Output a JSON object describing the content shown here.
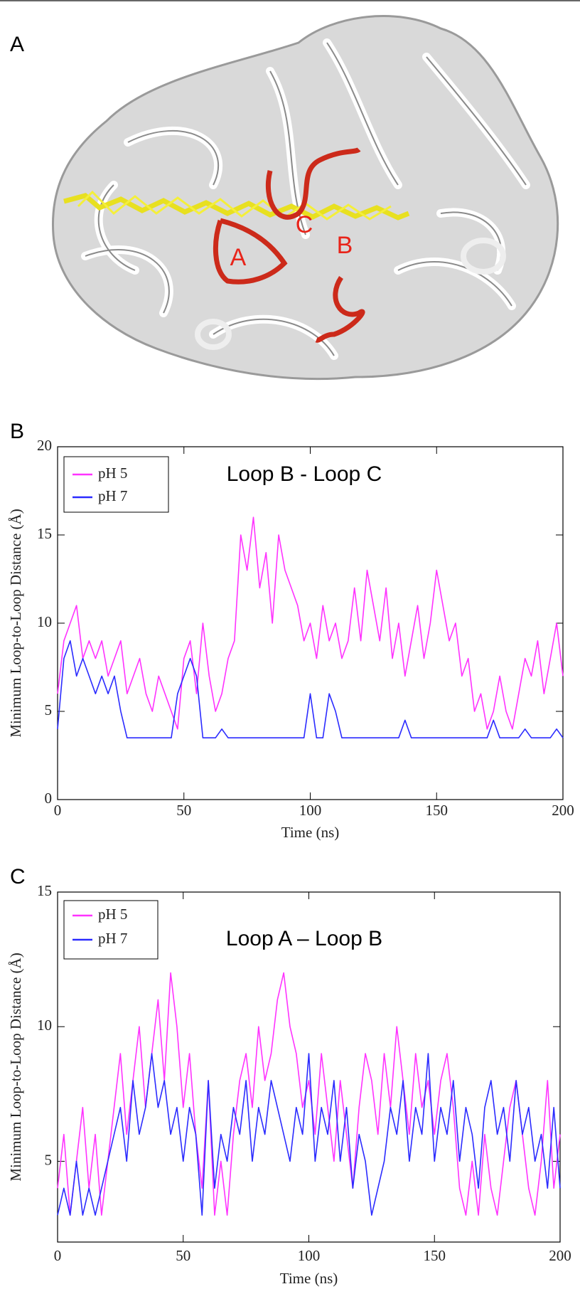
{
  "image_panel": {
    "panel_label": "A",
    "loop_labels": [
      "A",
      "C",
      "B"
    ]
  },
  "chart_data": [
    {
      "type": "line",
      "panel_label": "B",
      "annotation": "Loop B - Loop C",
      "xlabel": "Time (ns)",
      "ylabel": "Minimum Loop-to-Loop Distance (Å)",
      "xlim": [
        0,
        200
      ],
      "ylim": [
        0,
        20
      ],
      "xticks": [
        0,
        50,
        100,
        150,
        200
      ],
      "yticks": [
        0,
        5,
        10,
        15,
        20
      ],
      "legend": "upper-left",
      "x": [
        0,
        2.5,
        5,
        7.5,
        10,
        12.5,
        15,
        17.5,
        20,
        22.5,
        25,
        27.5,
        30,
        32.5,
        35,
        37.5,
        40,
        42.5,
        45,
        47.5,
        50,
        52.5,
        55,
        57.5,
        60,
        62.5,
        65,
        67.5,
        70,
        72.5,
        75,
        77.5,
        80,
        82.5,
        85,
        87.5,
        90,
        92.5,
        95,
        97.5,
        100,
        102.5,
        105,
        107.5,
        110,
        112.5,
        115,
        117.5,
        120,
        122.5,
        125,
        127.5,
        130,
        132.5,
        135,
        137.5,
        140,
        142.5,
        145,
        147.5,
        150,
        152.5,
        155,
        157.5,
        160,
        162.5,
        165,
        167.5,
        170,
        172.5,
        175,
        177.5,
        180,
        182.5,
        185,
        187.5,
        190,
        192.5,
        195,
        197.5,
        200
      ],
      "series": [
        {
          "name": "pH 5",
          "color": "#ff33ff",
          "values": [
            6,
            9,
            10,
            11,
            8,
            9,
            8,
            9,
            7,
            8,
            9,
            6,
            7,
            8,
            6,
            5,
            7,
            6,
            5,
            4,
            8,
            9,
            6,
            10,
            7,
            5,
            6,
            8,
            9,
            15,
            13,
            16,
            12,
            14,
            10,
            15,
            13,
            12,
            11,
            9,
            10,
            8,
            11,
            9,
            10,
            8,
            9,
            12,
            9,
            13,
            11,
            9,
            12,
            8,
            10,
            7,
            9,
            11,
            8,
            10,
            13,
            11,
            9,
            10,
            7,
            8,
            5,
            6,
            4,
            5,
            7,
            5,
            4,
            6,
            8,
            7,
            9,
            6,
            8,
            10,
            7
          ]
        },
        {
          "name": "pH 7",
          "color": "#2b2bff",
          "values": [
            4,
            8,
            9,
            7,
            8,
            7,
            6,
            7,
            6,
            7,
            5,
            3.5,
            3.5,
            3.5,
            3.5,
            3.5,
            3.5,
            3.5,
            3.5,
            6,
            7,
            8,
            7,
            3.5,
            3.5,
            3.5,
            4,
            3.5,
            3.5,
            3.5,
            3.5,
            3.5,
            3.5,
            3.5,
            3.5,
            3.5,
            3.5,
            3.5,
            3.5,
            3.5,
            6,
            3.5,
            3.5,
            6,
            5,
            3.5,
            3.5,
            3.5,
            3.5,
            3.5,
            3.5,
            3.5,
            3.5,
            3.5,
            3.5,
            4.5,
            3.5,
            3.5,
            3.5,
            3.5,
            3.5,
            3.5,
            3.5,
            3.5,
            3.5,
            3.5,
            3.5,
            3.5,
            3.5,
            4.5,
            3.5,
            3.5,
            3.5,
            3.5,
            4,
            3.5,
            3.5,
            3.5,
            3.5,
            4,
            3.5
          ]
        }
      ]
    },
    {
      "type": "line",
      "panel_label": "C",
      "annotation": "Loop A – Loop B",
      "xlabel": "Time (ns)",
      "ylabel": "Minimum Loop-to-Loop Distance (Å)",
      "xlim": [
        0,
        200
      ],
      "ylim": [
        2,
        15
      ],
      "xticks": [
        0,
        50,
        100,
        150,
        200
      ],
      "yticks": [
        5,
        10,
        15
      ],
      "legend": "upper-left",
      "x": [
        0,
        2.5,
        5,
        7.5,
        10,
        12.5,
        15,
        17.5,
        20,
        22.5,
        25,
        27.5,
        30,
        32.5,
        35,
        37.5,
        40,
        42.5,
        45,
        47.5,
        50,
        52.5,
        55,
        57.5,
        60,
        62.5,
        65,
        67.5,
        70,
        72.5,
        75,
        77.5,
        80,
        82.5,
        85,
        87.5,
        90,
        92.5,
        95,
        97.5,
        100,
        102.5,
        105,
        107.5,
        110,
        112.5,
        115,
        117.5,
        120,
        122.5,
        125,
        127.5,
        130,
        132.5,
        135,
        137.5,
        140,
        142.5,
        145,
        147.5,
        150,
        152.5,
        155,
        157.5,
        160,
        162.5,
        165,
        167.5,
        170,
        172.5,
        175,
        177.5,
        180,
        182.5,
        185,
        187.5,
        190,
        192.5,
        195,
        197.5,
        200
      ],
      "series": [
        {
          "name": "pH 5",
          "color": "#ff33ff",
          "values": [
            4,
            6,
            3,
            5,
            7,
            4,
            6,
            3,
            5,
            7,
            9,
            6,
            8,
            10,
            7,
            9,
            11,
            8,
            12,
            10,
            7,
            9,
            6,
            4,
            8,
            3,
            5,
            3,
            6,
            8,
            9,
            7,
            10,
            8,
            9,
            11,
            12,
            10,
            9,
            7,
            8,
            6,
            9,
            7,
            5,
            8,
            6,
            4,
            7,
            9,
            8,
            6,
            9,
            7,
            10,
            8,
            6,
            9,
            7,
            8,
            6,
            8,
            9,
            7,
            4,
            3,
            5,
            3,
            6,
            4,
            3,
            5,
            7,
            8,
            6,
            4,
            3,
            5,
            8,
            4,
            6
          ]
        },
        {
          "name": "pH 7",
          "color": "#2b2bff",
          "values": [
            3,
            4,
            3,
            5,
            3,
            4,
            3,
            4,
            5,
            6,
            7,
            5,
            8,
            6,
            7,
            9,
            7,
            8,
            6,
            7,
            5,
            7,
            6,
            3,
            8,
            4,
            6,
            5,
            7,
            6,
            8,
            5,
            7,
            6,
            8,
            7,
            6,
            5,
            7,
            6,
            9,
            5,
            7,
            6,
            8,
            5,
            7,
            4,
            6,
            5,
            3,
            4,
            5,
            7,
            6,
            8,
            5,
            7,
            6,
            9,
            5,
            7,
            6,
            8,
            5,
            7,
            6,
            4,
            7,
            8,
            6,
            7,
            5,
            8,
            6,
            7,
            5,
            6,
            4,
            7,
            4
          ]
        }
      ]
    }
  ]
}
